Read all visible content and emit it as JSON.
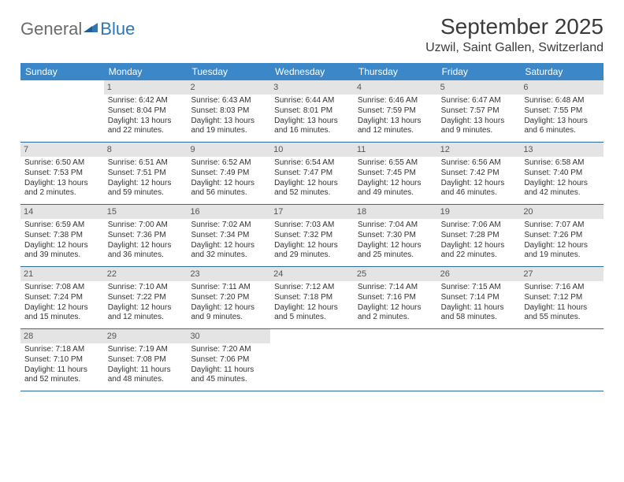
{
  "logo": {
    "text1": "General",
    "text2": "Blue"
  },
  "title": "September 2025",
  "location": "Uzwil, Saint Gallen, Switzerland",
  "colors": {
    "header_bg": "#3b87c8",
    "header_text": "#ffffff",
    "daynum_bg": "#e4e4e4",
    "rule": "#2d6ca2",
    "logo_gray": "#6b6b6b",
    "logo_blue": "#2a77bb"
  },
  "weekdays": [
    "Sunday",
    "Monday",
    "Tuesday",
    "Wednesday",
    "Thursday",
    "Friday",
    "Saturday"
  ],
  "days": [
    {
      "n": "",
      "sr": "",
      "ss": "",
      "dl": ""
    },
    {
      "n": "1",
      "sr": "Sunrise: 6:42 AM",
      "ss": "Sunset: 8:04 PM",
      "dl": "Daylight: 13 hours and 22 minutes."
    },
    {
      "n": "2",
      "sr": "Sunrise: 6:43 AM",
      "ss": "Sunset: 8:03 PM",
      "dl": "Daylight: 13 hours and 19 minutes."
    },
    {
      "n": "3",
      "sr": "Sunrise: 6:44 AM",
      "ss": "Sunset: 8:01 PM",
      "dl": "Daylight: 13 hours and 16 minutes."
    },
    {
      "n": "4",
      "sr": "Sunrise: 6:46 AM",
      "ss": "Sunset: 7:59 PM",
      "dl": "Daylight: 13 hours and 12 minutes."
    },
    {
      "n": "5",
      "sr": "Sunrise: 6:47 AM",
      "ss": "Sunset: 7:57 PM",
      "dl": "Daylight: 13 hours and 9 minutes."
    },
    {
      "n": "6",
      "sr": "Sunrise: 6:48 AM",
      "ss": "Sunset: 7:55 PM",
      "dl": "Daylight: 13 hours and 6 minutes."
    },
    {
      "n": "7",
      "sr": "Sunrise: 6:50 AM",
      "ss": "Sunset: 7:53 PM",
      "dl": "Daylight: 13 hours and 2 minutes."
    },
    {
      "n": "8",
      "sr": "Sunrise: 6:51 AM",
      "ss": "Sunset: 7:51 PM",
      "dl": "Daylight: 12 hours and 59 minutes."
    },
    {
      "n": "9",
      "sr": "Sunrise: 6:52 AM",
      "ss": "Sunset: 7:49 PM",
      "dl": "Daylight: 12 hours and 56 minutes."
    },
    {
      "n": "10",
      "sr": "Sunrise: 6:54 AM",
      "ss": "Sunset: 7:47 PM",
      "dl": "Daylight: 12 hours and 52 minutes."
    },
    {
      "n": "11",
      "sr": "Sunrise: 6:55 AM",
      "ss": "Sunset: 7:45 PM",
      "dl": "Daylight: 12 hours and 49 minutes."
    },
    {
      "n": "12",
      "sr": "Sunrise: 6:56 AM",
      "ss": "Sunset: 7:42 PM",
      "dl": "Daylight: 12 hours and 46 minutes."
    },
    {
      "n": "13",
      "sr": "Sunrise: 6:58 AM",
      "ss": "Sunset: 7:40 PM",
      "dl": "Daylight: 12 hours and 42 minutes."
    },
    {
      "n": "14",
      "sr": "Sunrise: 6:59 AM",
      "ss": "Sunset: 7:38 PM",
      "dl": "Daylight: 12 hours and 39 minutes."
    },
    {
      "n": "15",
      "sr": "Sunrise: 7:00 AM",
      "ss": "Sunset: 7:36 PM",
      "dl": "Daylight: 12 hours and 36 minutes."
    },
    {
      "n": "16",
      "sr": "Sunrise: 7:02 AM",
      "ss": "Sunset: 7:34 PM",
      "dl": "Daylight: 12 hours and 32 minutes."
    },
    {
      "n": "17",
      "sr": "Sunrise: 7:03 AM",
      "ss": "Sunset: 7:32 PM",
      "dl": "Daylight: 12 hours and 29 minutes."
    },
    {
      "n": "18",
      "sr": "Sunrise: 7:04 AM",
      "ss": "Sunset: 7:30 PM",
      "dl": "Daylight: 12 hours and 25 minutes."
    },
    {
      "n": "19",
      "sr": "Sunrise: 7:06 AM",
      "ss": "Sunset: 7:28 PM",
      "dl": "Daylight: 12 hours and 22 minutes."
    },
    {
      "n": "20",
      "sr": "Sunrise: 7:07 AM",
      "ss": "Sunset: 7:26 PM",
      "dl": "Daylight: 12 hours and 19 minutes."
    },
    {
      "n": "21",
      "sr": "Sunrise: 7:08 AM",
      "ss": "Sunset: 7:24 PM",
      "dl": "Daylight: 12 hours and 15 minutes."
    },
    {
      "n": "22",
      "sr": "Sunrise: 7:10 AM",
      "ss": "Sunset: 7:22 PM",
      "dl": "Daylight: 12 hours and 12 minutes."
    },
    {
      "n": "23",
      "sr": "Sunrise: 7:11 AM",
      "ss": "Sunset: 7:20 PM",
      "dl": "Daylight: 12 hours and 9 minutes."
    },
    {
      "n": "24",
      "sr": "Sunrise: 7:12 AM",
      "ss": "Sunset: 7:18 PM",
      "dl": "Daylight: 12 hours and 5 minutes."
    },
    {
      "n": "25",
      "sr": "Sunrise: 7:14 AM",
      "ss": "Sunset: 7:16 PM",
      "dl": "Daylight: 12 hours and 2 minutes."
    },
    {
      "n": "26",
      "sr": "Sunrise: 7:15 AM",
      "ss": "Sunset: 7:14 PM",
      "dl": "Daylight: 11 hours and 58 minutes."
    },
    {
      "n": "27",
      "sr": "Sunrise: 7:16 AM",
      "ss": "Sunset: 7:12 PM",
      "dl": "Daylight: 11 hours and 55 minutes."
    },
    {
      "n": "28",
      "sr": "Sunrise: 7:18 AM",
      "ss": "Sunset: 7:10 PM",
      "dl": "Daylight: 11 hours and 52 minutes."
    },
    {
      "n": "29",
      "sr": "Sunrise: 7:19 AM",
      "ss": "Sunset: 7:08 PM",
      "dl": "Daylight: 11 hours and 48 minutes."
    },
    {
      "n": "30",
      "sr": "Sunrise: 7:20 AM",
      "ss": "Sunset: 7:06 PM",
      "dl": "Daylight: 11 hours and 45 minutes."
    },
    {
      "n": "",
      "sr": "",
      "ss": "",
      "dl": ""
    },
    {
      "n": "",
      "sr": "",
      "ss": "",
      "dl": ""
    },
    {
      "n": "",
      "sr": "",
      "ss": "",
      "dl": ""
    },
    {
      "n": "",
      "sr": "",
      "ss": "",
      "dl": ""
    }
  ]
}
